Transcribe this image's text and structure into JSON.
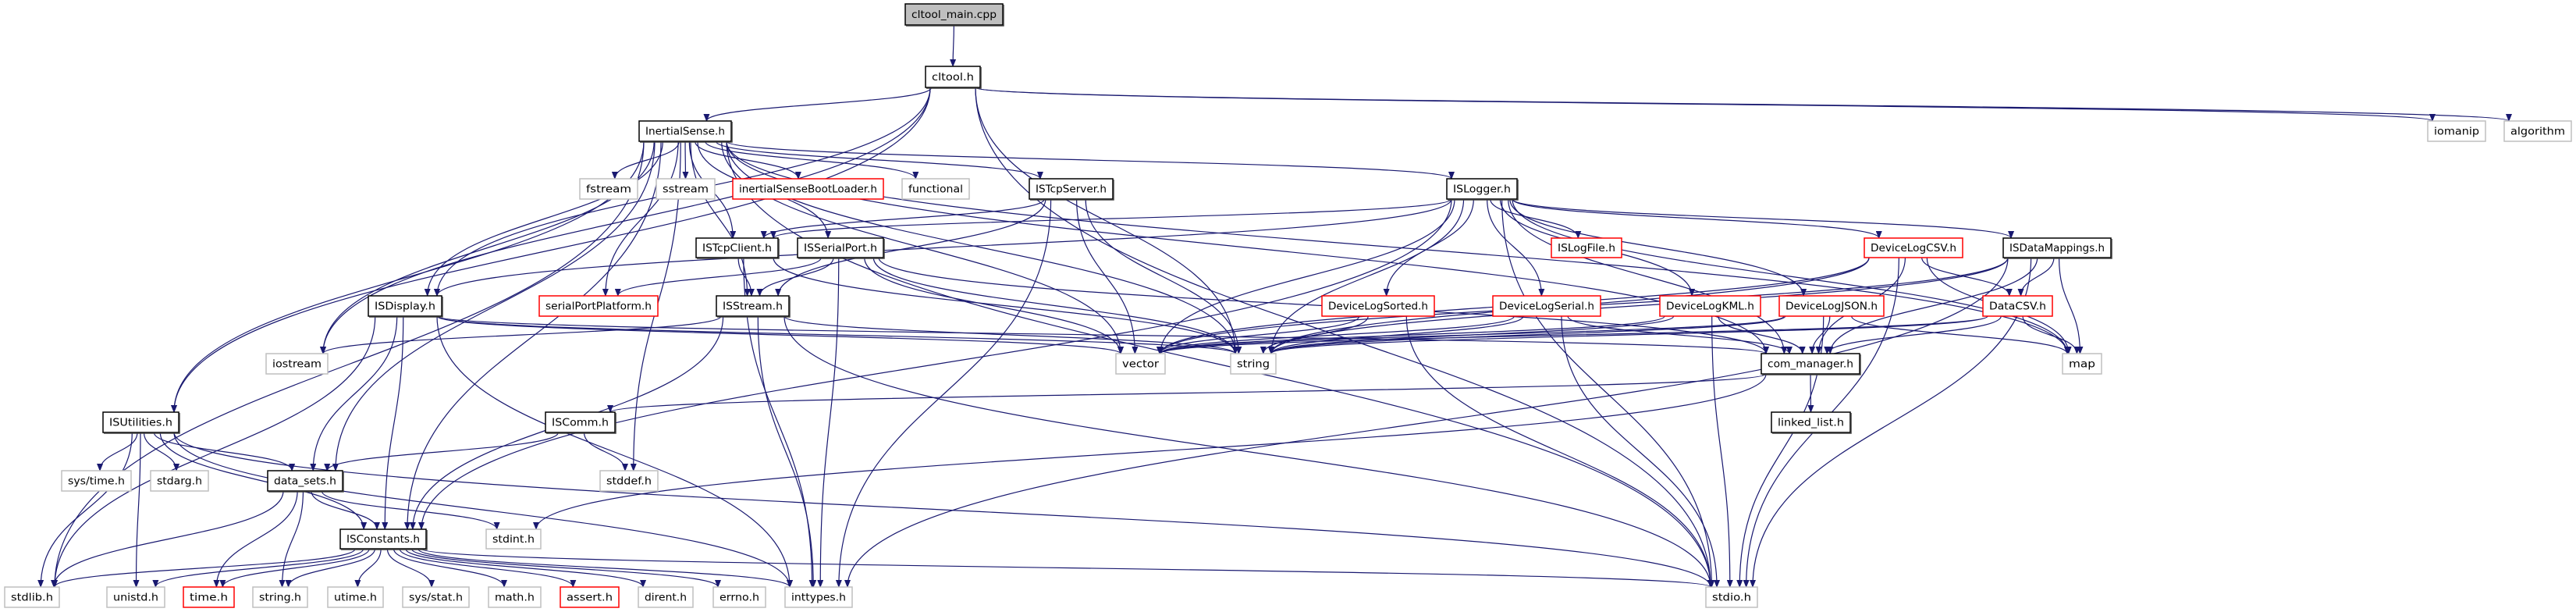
{
  "colors": {
    "edge": "#191970",
    "root_fill": "#bfbfbf",
    "border_documented": "#000000",
    "border_external": "#bfbfbf",
    "border_incomplete": "#ff0000"
  },
  "nodes": [
    {
      "id": "cltool_main",
      "label": "cltool_main.cpp",
      "kind": "root"
    },
    {
      "id": "cltool",
      "label": "cltool.h",
      "kind": "documented"
    },
    {
      "id": "InertialSense",
      "label": "InertialSense.h",
      "kind": "documented"
    },
    {
      "id": "iomanip",
      "label": "iomanip",
      "kind": "external"
    },
    {
      "id": "algorithm",
      "label": "algorithm",
      "kind": "external"
    },
    {
      "id": "fstream",
      "label": "fstream",
      "kind": "external"
    },
    {
      "id": "sstream",
      "label": "sstream",
      "kind": "external"
    },
    {
      "id": "bootloader",
      "label": "inertialSenseBootLoader.h",
      "kind": "incomplete"
    },
    {
      "id": "functional",
      "label": "functional",
      "kind": "external"
    },
    {
      "id": "ISTcpServer",
      "label": "ISTcpServer.h",
      "kind": "documented"
    },
    {
      "id": "ISLogger",
      "label": "ISLogger.h",
      "kind": "documented"
    },
    {
      "id": "ISTcpClient",
      "label": "ISTcpClient.h",
      "kind": "documented"
    },
    {
      "id": "ISSerialPort",
      "label": "ISSerialPort.h",
      "kind": "documented"
    },
    {
      "id": "ISLogFile",
      "label": "ISLogFile.h",
      "kind": "incomplete"
    },
    {
      "id": "DeviceLogCSV",
      "label": "DeviceLogCSV.h",
      "kind": "incomplete"
    },
    {
      "id": "ISDataMappings",
      "label": "ISDataMappings.h",
      "kind": "documented"
    },
    {
      "id": "ISDisplay",
      "label": "ISDisplay.h",
      "kind": "documented"
    },
    {
      "id": "serialPortPlatform",
      "label": "serialPortPlatform.h",
      "kind": "incomplete"
    },
    {
      "id": "ISStream",
      "label": "ISStream.h",
      "kind": "documented"
    },
    {
      "id": "DeviceLogSorted",
      "label": "DeviceLogSorted.h",
      "kind": "incomplete"
    },
    {
      "id": "DeviceLogSerial",
      "label": "DeviceLogSerial.h",
      "kind": "incomplete"
    },
    {
      "id": "DeviceLogKML",
      "label": "DeviceLogKML.h",
      "kind": "incomplete"
    },
    {
      "id": "DeviceLogJSON",
      "label": "DeviceLogJSON.h",
      "kind": "incomplete"
    },
    {
      "id": "DataCSV",
      "label": "DataCSV.h",
      "kind": "incomplete"
    },
    {
      "id": "iostream",
      "label": "iostream",
      "kind": "external"
    },
    {
      "id": "vector",
      "label": "vector",
      "kind": "external"
    },
    {
      "id": "string",
      "label": "string",
      "kind": "external"
    },
    {
      "id": "com_manager",
      "label": "com_manager.h",
      "kind": "documented"
    },
    {
      "id": "map",
      "label": "map",
      "kind": "external"
    },
    {
      "id": "ISUtilities",
      "label": "ISUtilities.h",
      "kind": "documented"
    },
    {
      "id": "ISComm",
      "label": "ISComm.h",
      "kind": "documented"
    },
    {
      "id": "linked_list",
      "label": "linked_list.h",
      "kind": "documented"
    },
    {
      "id": "systime",
      "label": "sys/time.h",
      "kind": "external"
    },
    {
      "id": "stdarg",
      "label": "stdarg.h",
      "kind": "external"
    },
    {
      "id": "data_sets",
      "label": "data_sets.h",
      "kind": "documented"
    },
    {
      "id": "stddef",
      "label": "stddef.h",
      "kind": "external"
    },
    {
      "id": "ISConstants",
      "label": "ISConstants.h",
      "kind": "documented"
    },
    {
      "id": "stdint",
      "label": "stdint.h",
      "kind": "external"
    },
    {
      "id": "stdlib",
      "label": "stdlib.h",
      "kind": "external"
    },
    {
      "id": "unistd",
      "label": "unistd.h",
      "kind": "external"
    },
    {
      "id": "time",
      "label": "time.h",
      "kind": "incomplete"
    },
    {
      "id": "stringh",
      "label": "string.h",
      "kind": "external"
    },
    {
      "id": "utime",
      "label": "utime.h",
      "kind": "external"
    },
    {
      "id": "sysstat",
      "label": "sys/stat.h",
      "kind": "external"
    },
    {
      "id": "math",
      "label": "math.h",
      "kind": "external"
    },
    {
      "id": "assert",
      "label": "assert.h",
      "kind": "incomplete"
    },
    {
      "id": "dirent",
      "label": "dirent.h",
      "kind": "external"
    },
    {
      "id": "errno",
      "label": "errno.h",
      "kind": "external"
    },
    {
      "id": "inttypes",
      "label": "inttypes.h",
      "kind": "external"
    },
    {
      "id": "stdio",
      "label": "stdio.h",
      "kind": "external"
    }
  ],
  "edges": [
    [
      "cltool_main",
      "cltool"
    ],
    [
      "cltool",
      "InertialSense"
    ],
    [
      "cltool",
      "ISUtilities"
    ],
    [
      "cltool",
      "ISDisplay"
    ],
    [
      "cltool",
      "iostream"
    ],
    [
      "cltool",
      "string"
    ],
    [
      "cltool",
      "stdio"
    ],
    [
      "cltool",
      "iomanip"
    ],
    [
      "cltool",
      "algorithm"
    ],
    [
      "InertialSense",
      "fstream"
    ],
    [
      "InertialSense",
      "sstream"
    ],
    [
      "InertialSense",
      "bootloader"
    ],
    [
      "InertialSense",
      "functional"
    ],
    [
      "InertialSense",
      "ISTcpServer"
    ],
    [
      "InertialSense",
      "ISLogger"
    ],
    [
      "InertialSense",
      "ISTcpClient"
    ],
    [
      "InertialSense",
      "ISSerialPort"
    ],
    [
      "InertialSense",
      "ISDisplay"
    ],
    [
      "InertialSense",
      "serialPortPlatform"
    ],
    [
      "InertialSense",
      "ISStream"
    ],
    [
      "InertialSense",
      "iostream"
    ],
    [
      "InertialSense",
      "ISUtilities"
    ],
    [
      "InertialSense",
      "data_sets"
    ],
    [
      "InertialSense",
      "ISConstants"
    ],
    [
      "InertialSense",
      "stdlib"
    ],
    [
      "InertialSense",
      "stddef"
    ],
    [
      "InertialSense",
      "vector"
    ],
    [
      "InertialSense",
      "string"
    ],
    [
      "InertialSense",
      "stdio"
    ],
    [
      "InertialSense",
      "com_manager"
    ],
    [
      "InertialSense",
      "map"
    ],
    [
      "ISTcpServer",
      "ISTcpClient"
    ],
    [
      "ISTcpServer",
      "ISStream"
    ],
    [
      "ISTcpServer",
      "vector"
    ],
    [
      "ISTcpServer",
      "string"
    ],
    [
      "ISTcpServer",
      "inttypes"
    ],
    [
      "ISLogger",
      "ISLogFile"
    ],
    [
      "ISLogger",
      "DeviceLogSorted"
    ],
    [
      "ISLogger",
      "DeviceLogSerial"
    ],
    [
      "ISLogger",
      "DeviceLogKML"
    ],
    [
      "ISLogger",
      "DeviceLogJSON"
    ],
    [
      "ISLogger",
      "DeviceLogCSV"
    ],
    [
      "ISLogger",
      "ISDataMappings"
    ],
    [
      "ISLogger",
      "ISDisplay"
    ],
    [
      "ISLogger",
      "ISConstants"
    ],
    [
      "ISLogger",
      "vector"
    ],
    [
      "ISLogger",
      "string"
    ],
    [
      "ISLogger",
      "com_manager"
    ],
    [
      "ISLogger",
      "map"
    ],
    [
      "ISLogger",
      "stdio"
    ],
    [
      "ISLogger",
      "ISTcpClient"
    ],
    [
      "ISTcpClient",
      "ISStream"
    ],
    [
      "ISTcpClient",
      "inttypes"
    ],
    [
      "ISTcpClient",
      "string"
    ],
    [
      "ISSerialPort",
      "serialPortPlatform"
    ],
    [
      "ISSerialPort",
      "ISStream"
    ],
    [
      "ISSerialPort",
      "inttypes"
    ],
    [
      "ISSerialPort",
      "vector"
    ],
    [
      "ISSerialPort",
      "string"
    ],
    [
      "ISSerialPort",
      "com_manager"
    ],
    [
      "ISStream",
      "iostream"
    ],
    [
      "ISStream",
      "ISConstants"
    ],
    [
      "ISStream",
      "inttypes"
    ],
    [
      "ISStream",
      "stdio"
    ],
    [
      "ISStream",
      "string"
    ],
    [
      "ISDisplay",
      "vector"
    ],
    [
      "ISDisplay",
      "string"
    ],
    [
      "ISDisplay",
      "com_manager"
    ],
    [
      "ISDisplay",
      "data_sets"
    ],
    [
      "ISDisplay",
      "ISConstants"
    ],
    [
      "ISDisplay",
      "stdlib"
    ],
    [
      "ISDisplay",
      "inttypes"
    ],
    [
      "DeviceLogSorted",
      "vector"
    ],
    [
      "DeviceLogSorted",
      "string"
    ],
    [
      "DeviceLogSorted",
      "stdio"
    ],
    [
      "DeviceLogSerial",
      "vector"
    ],
    [
      "DeviceLogSerial",
      "string"
    ],
    [
      "DeviceLogSerial",
      "com_manager"
    ],
    [
      "DeviceLogSerial",
      "stdio"
    ],
    [
      "DeviceLogKML",
      "vector"
    ],
    [
      "DeviceLogKML",
      "string"
    ],
    [
      "DeviceLogKML",
      "com_manager"
    ],
    [
      "DeviceLogKML",
      "stdio"
    ],
    [
      "DeviceLogJSON",
      "vector"
    ],
    [
      "DeviceLogJSON",
      "string"
    ],
    [
      "DeviceLogJSON",
      "com_manager"
    ],
    [
      "DeviceLogJSON",
      "map"
    ],
    [
      "DeviceLogJSON",
      "stdio"
    ],
    [
      "DeviceLogCSV",
      "vector"
    ],
    [
      "DeviceLogCSV",
      "string"
    ],
    [
      "DeviceLogCSV",
      "com_manager"
    ],
    [
      "DeviceLogCSV",
      "map"
    ],
    [
      "DeviceLogCSV",
      "DataCSV"
    ],
    [
      "DeviceLogCSV",
      "stdio"
    ],
    [
      "ISDataMappings",
      "DataCSV"
    ],
    [
      "ISDataMappings",
      "com_manager"
    ],
    [
      "ISDataMappings",
      "map"
    ],
    [
      "ISDataMappings",
      "string"
    ],
    [
      "ISDataMappings",
      "vector"
    ],
    [
      "ISDataMappings",
      "inttypes"
    ],
    [
      "ISDataMappings",
      "stdio"
    ],
    [
      "DataCSV",
      "com_manager"
    ],
    [
      "DataCSV",
      "map"
    ],
    [
      "DataCSV",
      "string"
    ],
    [
      "DataCSV",
      "vector"
    ],
    [
      "com_manager",
      "linked_list"
    ],
    [
      "com_manager",
      "ISComm"
    ],
    [
      "com_manager",
      "stdint"
    ],
    [
      "ISComm",
      "data_sets"
    ],
    [
      "ISComm",
      "stddef"
    ],
    [
      "ISUtilities",
      "systime"
    ],
    [
      "ISUtilities",
      "stdarg"
    ],
    [
      "ISUtilities",
      "data_sets"
    ],
    [
      "ISUtilities",
      "ISConstants"
    ],
    [
      "ISUtilities",
      "stdlib"
    ],
    [
      "ISUtilities",
      "unistd"
    ],
    [
      "ISUtilities",
      "inttypes"
    ],
    [
      "ISUtilities",
      "stdio"
    ],
    [
      "data_sets",
      "ISConstants"
    ],
    [
      "data_sets",
      "stdint"
    ],
    [
      "data_sets",
      "stdlib"
    ],
    [
      "data_sets",
      "time"
    ],
    [
      "data_sets",
      "stringh"
    ],
    [
      "ISConstants",
      "stdlib"
    ],
    [
      "ISConstants",
      "unistd"
    ],
    [
      "ISConstants",
      "time"
    ],
    [
      "ISConstants",
      "stringh"
    ],
    [
      "ISConstants",
      "utime"
    ],
    [
      "ISConstants",
      "sysstat"
    ],
    [
      "ISConstants",
      "math"
    ],
    [
      "ISConstants",
      "assert"
    ],
    [
      "ISConstants",
      "dirent"
    ],
    [
      "ISConstants",
      "errno"
    ],
    [
      "ISConstants",
      "inttypes"
    ],
    [
      "ISConstants",
      "stdio"
    ]
  ]
}
